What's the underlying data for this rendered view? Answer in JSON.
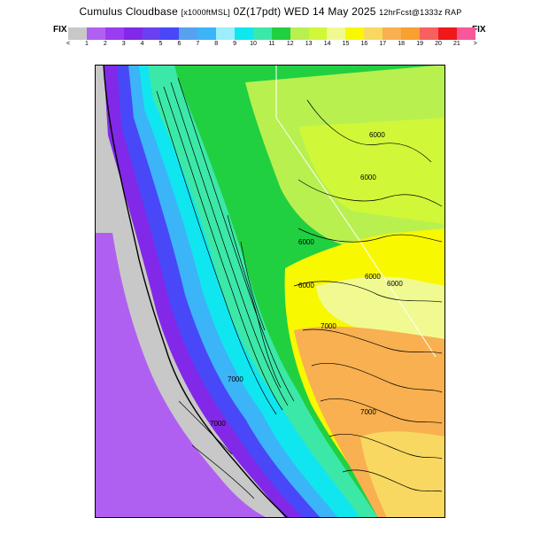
{
  "header": {
    "title_main": "Cumulus Cloudbase",
    "title_units": "[x1000ftMSL]",
    "title_time": "0Z(17pdt) WED 14 May 2025",
    "title_model": "12hrFcst@1333z RAP",
    "fix_left": "FIX",
    "fix_right": "FIX"
  },
  "legend": {
    "min_symbol": "<",
    "max_symbol": ">",
    "tick_labels": [
      "1",
      "2",
      "3",
      "4",
      "5",
      "6",
      "7",
      "8",
      "9",
      "10",
      "11",
      "12",
      "13",
      "14",
      "15",
      "16",
      "17",
      "18",
      "19",
      "20",
      "21"
    ],
    "colors": [
      "#c8c8c8",
      "#b060f0",
      "#9a3cf0",
      "#8228e8",
      "#6a40f0",
      "#4848f8",
      "#58a0f0",
      "#3cb4f8",
      "#9ceefa",
      "#10e6f0",
      "#3ce8a8",
      "#20d040",
      "#b8f050",
      "#d0f838",
      "#f0fa90",
      "#f8f800",
      "#f8d860",
      "#f8b050",
      "#f8a030",
      "#f86060",
      "#f01818",
      "#f85898",
      "#f870d8",
      "#f000e0"
    ]
  },
  "map": {
    "contour_labels": [
      "6000",
      "6000",
      "6000",
      "6000",
      "6000",
      "6000",
      "7000",
      "7000",
      "7000",
      "7000"
    ],
    "colors": {
      "ocean": "#b060f0",
      "land_border": "#c8c8c8",
      "coast_low": "#6a40f0",
      "valley": "#20d040",
      "northeast": "#b8f050",
      "basin": "#f8f800",
      "desert": "#f8b050"
    }
  }
}
